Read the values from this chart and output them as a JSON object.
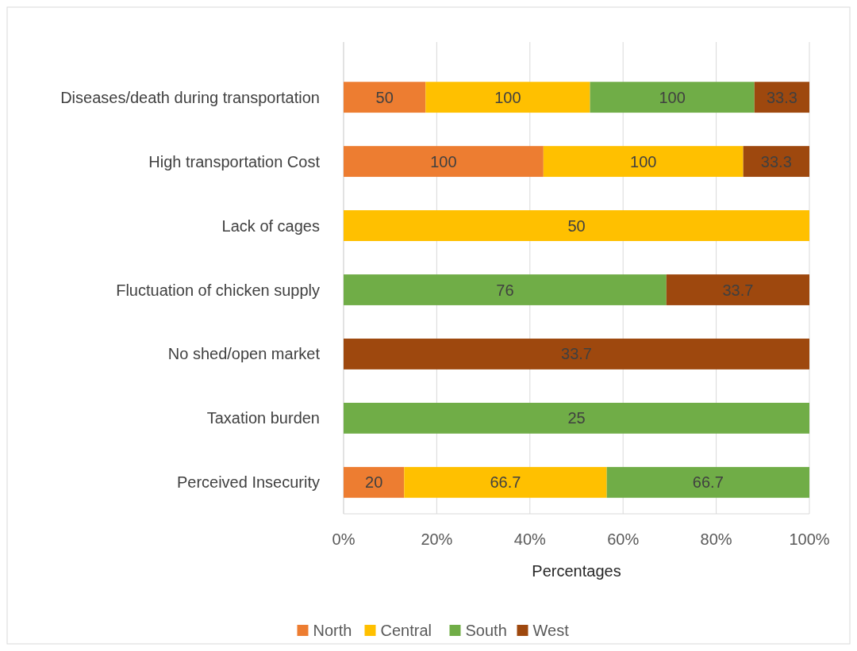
{
  "chart_data": {
    "type": "bar",
    "orientation": "horizontal",
    "stacked": true,
    "xlabel": "Percentages",
    "categories": [
      "Diseases/death during transportation",
      "High transportation Cost",
      "Lack of cages",
      "Fluctuation of chicken supply",
      "No shed/open market",
      "Taxation burden",
      "Perceived Insecurity"
    ],
    "series": [
      {
        "name": "North",
        "color": "#ed7d31",
        "values": [
          17.6,
          42.9,
          null,
          null,
          null,
          null,
          13.0
        ]
      },
      {
        "name": "Central",
        "color": "#ffc000",
        "values": [
          35.3,
          42.9,
          100,
          null,
          null,
          null,
          43.5
        ]
      },
      {
        "name": "South",
        "color": "#70ad47",
        "values": [
          35.3,
          null,
          null,
          69.3,
          null,
          100,
          43.5
        ]
      },
      {
        "name": "West",
        "color": "#9e480e",
        "values": [
          11.8,
          14.2,
          null,
          30.7,
          100,
          null,
          null
        ]
      }
    ],
    "annotations": [
      "50",
      "100",
      "100",
      "33.3",
      "100",
      "100",
      "33.3",
      "50",
      "76",
      "33.7",
      "33.7",
      "25",
      "20",
      "66.7",
      "66.7"
    ],
    "xlim": [
      0,
      100
    ],
    "xticks": [
      {
        "value": 0,
        "label": "0%"
      },
      {
        "value": 20,
        "label": "20%"
      },
      {
        "value": 40,
        "label": "40%"
      },
      {
        "value": 60,
        "label": "60%"
      },
      {
        "value": 80,
        "label": "80%"
      },
      {
        "value": 100,
        "label": "100%"
      }
    ],
    "grid": "x",
    "legend": "bottom"
  }
}
